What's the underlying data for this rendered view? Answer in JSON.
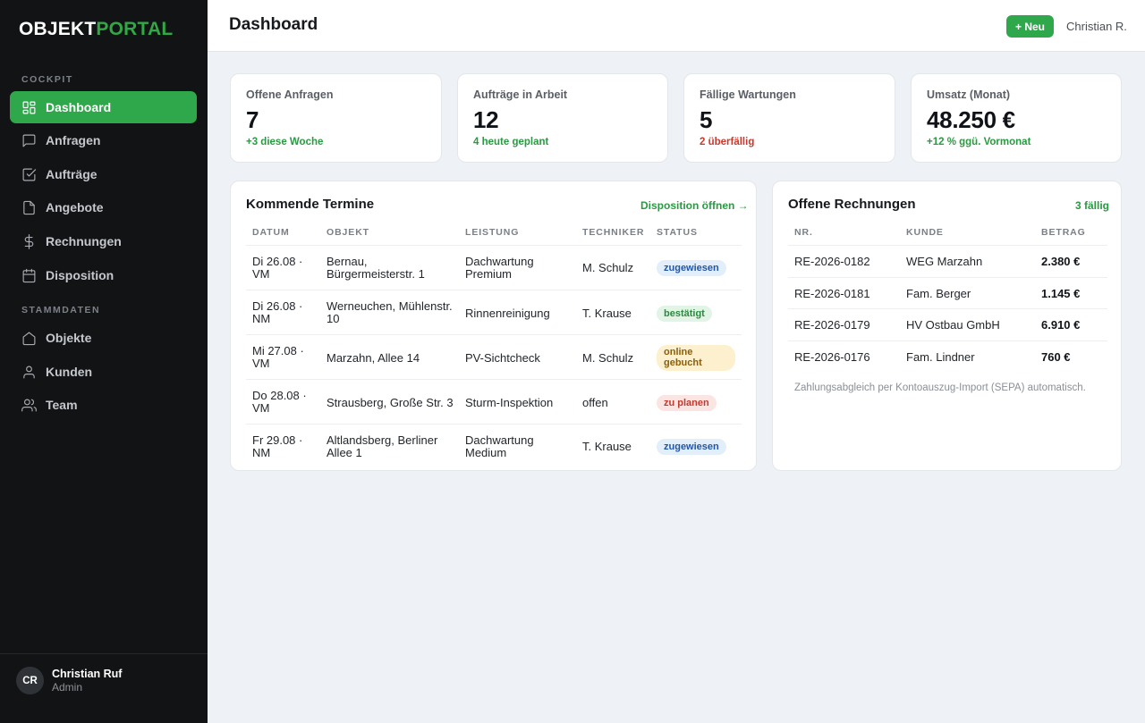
{
  "brand": {
    "part1": "OBJEKT",
    "part2": "PORTAL"
  },
  "sidebar": {
    "section1": "COCKPIT",
    "section2": "STAMMDATEN",
    "items": [
      {
        "label": "Dashboard",
        "icon": "grid-icon"
      },
      {
        "label": "Anfragen",
        "icon": "chat-icon"
      },
      {
        "label": "Aufträge",
        "icon": "checkbox-icon"
      },
      {
        "label": "Angebote",
        "icon": "document-icon"
      },
      {
        "label": "Rechnungen",
        "icon": "dollar-icon"
      },
      {
        "label": "Disposition",
        "icon": "calendar-icon"
      },
      {
        "label": "Objekte",
        "icon": "home-icon"
      },
      {
        "label": "Kunden",
        "icon": "user-icon"
      },
      {
        "label": "Team",
        "icon": "users-icon"
      }
    ],
    "user": {
      "initials": "CR",
      "name": "Christian Ruf",
      "role": "Admin"
    }
  },
  "header": {
    "title": "Dashboard",
    "new_label": "+ Neu",
    "user": "Christian R."
  },
  "kpis": [
    {
      "label": "Offene Anfragen",
      "value": "7",
      "sub": "+3 diese Woche",
      "tone": "green"
    },
    {
      "label": "Aufträge in Arbeit",
      "value": "12",
      "sub": "4 heute geplant",
      "tone": "green"
    },
    {
      "label": "Fällige Wartungen",
      "value": "5",
      "sub": "2 überfällig",
      "tone": "red"
    },
    {
      "label": "Umsatz (Monat)",
      "value": "48.250 €",
      "sub": "+12 % ggü. Vormonat",
      "tone": "green"
    }
  ],
  "termine": {
    "title": "Kommende Termine",
    "link": "Disposition öffnen →",
    "columns": [
      "DATUM",
      "OBJEKT",
      "LEISTUNG",
      "TECHNIKER",
      "STATUS"
    ],
    "rows": [
      {
        "datum": [
          "Di 26.08 ·",
          "VM"
        ],
        "objekt": [
          "Bernau,",
          "Bürgermeisterstr. 1"
        ],
        "leistung": [
          "Dachwartung",
          "Premium"
        ],
        "techniker": "M. Schulz",
        "status": "zugewiesen",
        "tone": "blue"
      },
      {
        "datum": [
          "Di 26.08 ·",
          "NM"
        ],
        "objekt": [
          "Werneuchen, Mühlenstr.",
          "10"
        ],
        "leistung": [
          "Rinnenreinigung"
        ],
        "techniker": "T. Krause",
        "status": "bestätigt",
        "tone": "green"
      },
      {
        "datum": [
          "Mi 27.08 ·",
          "VM"
        ],
        "objekt": [
          "Marzahn, Allee 14"
        ],
        "leistung": [
          "PV-Sichtcheck"
        ],
        "techniker": "M. Schulz",
        "status": [
          "online",
          "gebucht"
        ],
        "tone": "yellow"
      },
      {
        "datum": [
          "Do 28.08 ·",
          "VM"
        ],
        "objekt": [
          "Strausberg, Große Str. 3"
        ],
        "leistung": [
          "Sturm-Inspektion"
        ],
        "techniker": "offen",
        "status": "zu planen",
        "tone": "red"
      },
      {
        "datum": [
          "Fr 29.08 ·",
          "NM"
        ],
        "objekt": [
          "Altlandsberg, Berliner",
          "Allee 1"
        ],
        "leistung": [
          "Dachwartung",
          "Medium"
        ],
        "techniker": "T. Krause",
        "status": "zugewiesen",
        "tone": "blue"
      }
    ]
  },
  "rechnungen": {
    "title": "Offene Rechnungen",
    "link": "3 fällig",
    "columns": [
      "NR.",
      "KUNDE",
      "BETRAG"
    ],
    "rows": [
      {
        "nr": "RE-2026-0182",
        "kunde": "WEG Marzahn",
        "betrag": "2.380 €"
      },
      {
        "nr": "RE-2026-0181",
        "kunde": "Fam. Berger",
        "betrag": "1.145 €"
      },
      {
        "nr": "RE-2026-0179",
        "kunde": "HV Ostbau GmbH",
        "betrag": "6.910 €"
      },
      {
        "nr": "RE-2026-0176",
        "kunde": "Fam. Lindner",
        "betrag": "760 €"
      }
    ],
    "note": "Zahlungsabgleich per Kontoauszug-Import (SEPA) automatisch."
  }
}
